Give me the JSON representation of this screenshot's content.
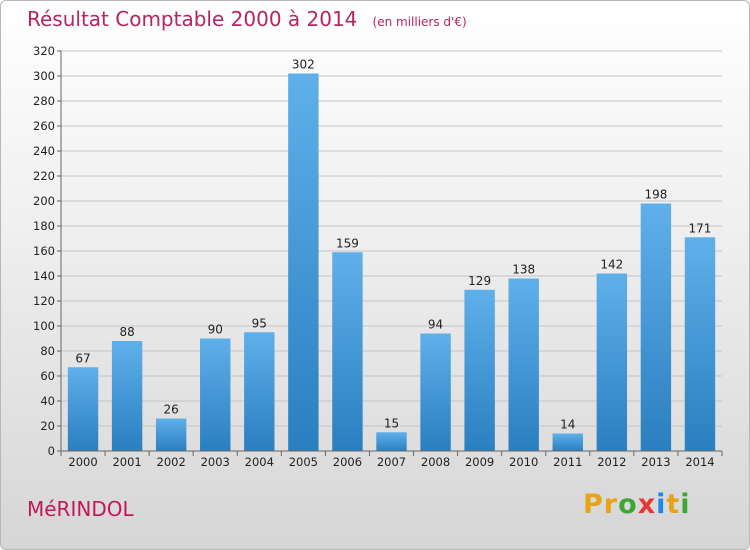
{
  "header": {
    "title": "Résultat Comptable 2000 à 2014",
    "unit": "(en milliers d'€)"
  },
  "town": "MéRINDOL",
  "logo": {
    "letters": [
      "P",
      "r",
      "o",
      "x",
      "i",
      "t",
      "i"
    ],
    "colors": [
      "#e8a317",
      "#e8a317",
      "#3fa535",
      "#e53935",
      "#1e88e5",
      "#e8a317",
      "#3fa535"
    ]
  },
  "colors": {
    "bar_light": "#5fb0ea",
    "bar_dark": "#2a7fc0",
    "title": "#b52463"
  },
  "chart_data": {
    "type": "bar",
    "title": "Résultat Comptable 2000 à 2014",
    "subtitle": "(en milliers d'€)",
    "categories": [
      "2000",
      "2001",
      "2002",
      "2003",
      "2004",
      "2005",
      "2006",
      "2007",
      "2008",
      "2009",
      "2010",
      "2011",
      "2012",
      "2013",
      "2014"
    ],
    "values": [
      67,
      88,
      26,
      90,
      95,
      302,
      159,
      15,
      94,
      129,
      138,
      14,
      142,
      198,
      171
    ],
    "ylim": [
      0,
      320
    ],
    "yticks": [
      0,
      20,
      40,
      60,
      80,
      100,
      120,
      140,
      160,
      180,
      200,
      220,
      240,
      260,
      280,
      300,
      320
    ],
    "grid": true,
    "legend": "none"
  }
}
